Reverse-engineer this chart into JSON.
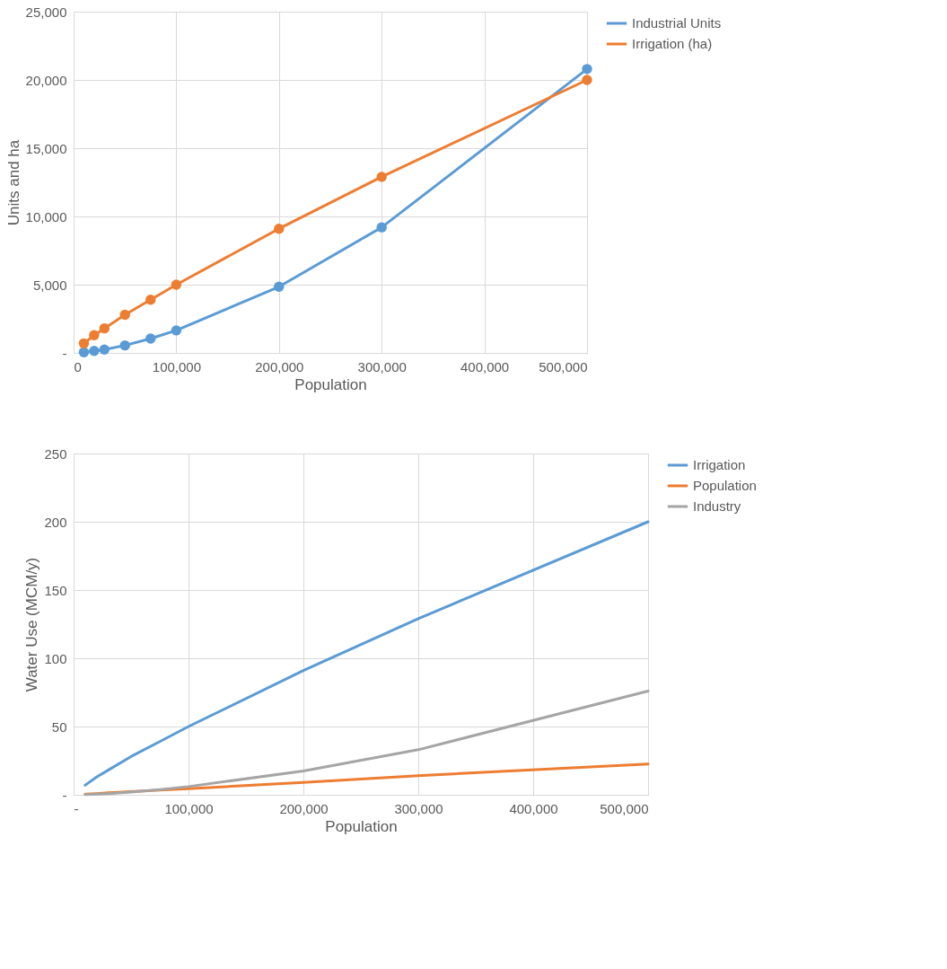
{
  "chart_data": [
    {
      "type": "line",
      "xlabel": "Population",
      "ylabel": "Units and ha",
      "x": [
        10000,
        20000,
        30000,
        50000,
        75000,
        100000,
        200000,
        300000,
        500000
      ],
      "series": [
        {
          "name": "Industrial Units",
          "color": "#5b9bd5",
          "values": [
            50,
            150,
            250,
            550,
            1050,
            1650,
            4850,
            9200,
            20800
          ]
        },
        {
          "name": "Irrigation (ha)",
          "color": "#ed7d31",
          "values": [
            700,
            1300,
            1800,
            2800,
            3900,
            5000,
            9100,
            12900,
            20000
          ]
        }
      ],
      "xlim": [
        0,
        500000
      ],
      "xticks": [
        0,
        {
          "value": 100000,
          "label": "100,000"
        },
        {
          "value": 200000,
          "label": "200,000"
        },
        {
          "value": 300000,
          "label": "300,000"
        },
        {
          "value": 400000,
          "label": "400,000"
        },
        {
          "value": 500000,
          "label": "500,000"
        }
      ],
      "ylim": [
        0,
        25000
      ],
      "yticks": [
        {
          "value": 0,
          "label": "-"
        },
        {
          "value": 5000,
          "label": "5,000"
        },
        {
          "value": 10000,
          "label": "10,000"
        },
        {
          "value": 15000,
          "label": "15,000"
        },
        {
          "value": 20000,
          "label": "20,000"
        },
        {
          "value": 25000,
          "label": "25,000"
        }
      ],
      "grid": true,
      "legend": "right",
      "marker": "circle",
      "line_style": "solid"
    },
    {
      "type": "line",
      "xlabel": "Population",
      "ylabel": "Water Use (MCM/y)",
      "x": [
        10000,
        20000,
        30000,
        50000,
        75000,
        100000,
        200000,
        300000,
        500000
      ],
      "series": [
        {
          "name": "Irrigation",
          "color": "#5b9bd5",
          "values": [
            7,
            13,
            18,
            28,
            39,
            50,
            91,
            129,
            200
          ]
        },
        {
          "name": "Population",
          "color": "#ed7d31",
          "values": [
            0.5,
            0.9,
            1.4,
            2.3,
            3.4,
            4.5,
            9,
            14,
            22.5
          ]
        },
        {
          "name": "Industry",
          "color": "#a5a5a5",
          "values": [
            0.2,
            0.5,
            0.9,
            2,
            3.8,
            6,
            17.5,
            33,
            76
          ]
        }
      ],
      "xlim": [
        0,
        500000
      ],
      "xticks": [
        {
          "value": 0,
          "label": "-"
        },
        {
          "value": 100000,
          "label": "100,000"
        },
        {
          "value": 200000,
          "label": "200,000"
        },
        {
          "value": 300000,
          "label": "300,000"
        },
        {
          "value": 400000,
          "label": "400,000"
        },
        {
          "value": 500000,
          "label": "500,000"
        }
      ],
      "ylim": [
        0,
        250
      ],
      "yticks": [
        {
          "value": 0,
          "label": "-"
        },
        50,
        100,
        150,
        200,
        250
      ],
      "grid": true,
      "legend": "right",
      "marker": "none",
      "line_style": "solid"
    }
  ]
}
